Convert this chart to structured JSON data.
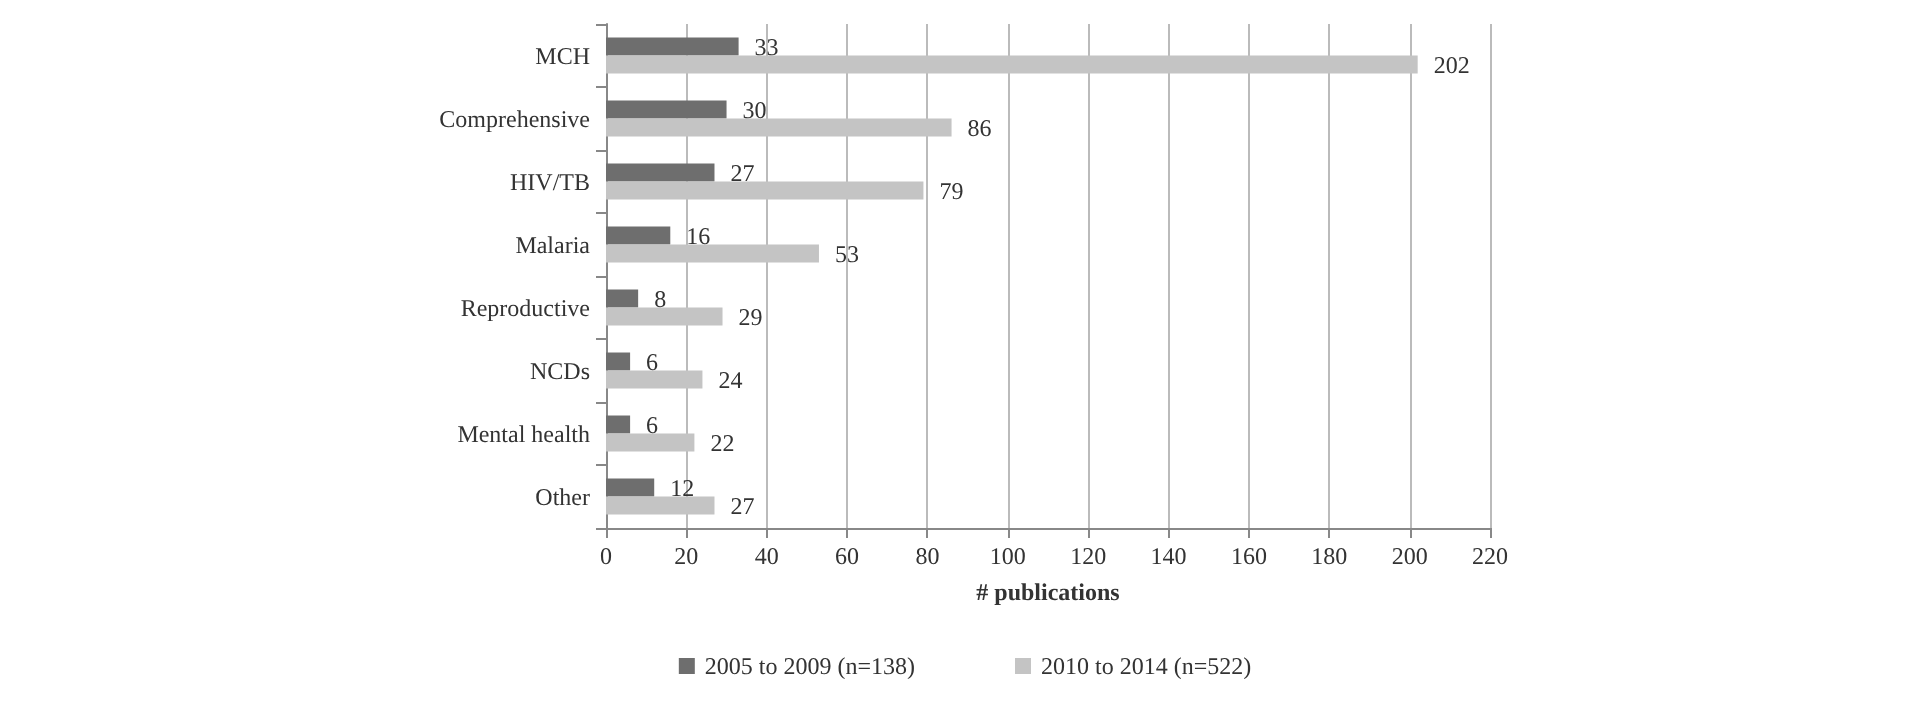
{
  "chart_data": {
    "type": "bar",
    "orientation": "horizontal",
    "xlabel": "# publications",
    "categories": [
      "MCH",
      "Comprehensive",
      "HIV/TB",
      "Malaria",
      "Reproductive",
      "NCDs",
      "Mental health",
      "Other"
    ],
    "series": [
      {
        "name": "2005 to 2009 (n=138)",
        "color": "#6e6e6e",
        "values": [
          33,
          30,
          27,
          16,
          8,
          6,
          6,
          12
        ]
      },
      {
        "name": "2010 to 2014 (n=522)",
        "color": "#c4c4c4",
        "values": [
          202,
          86,
          79,
          53,
          29,
          24,
          22,
          27
        ]
      }
    ],
    "xlim": [
      0,
      220
    ],
    "xticks": [
      0,
      20,
      40,
      60,
      80,
      100,
      120,
      140,
      160,
      180,
      200,
      220
    ],
    "grid": "x",
    "legend": "bottom",
    "data_labels": true
  }
}
